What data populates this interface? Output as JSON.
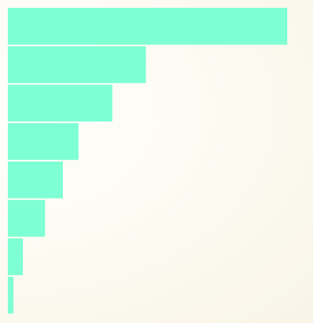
{
  "chart_data": {
    "type": "bar",
    "orientation": "horizontal",
    "title": "",
    "xlabel": "",
    "ylabel": "",
    "grid": false,
    "legend": "none",
    "bar_color": "#7fffd4",
    "xlim": [
      0,
      100
    ],
    "values": [
      100,
      49.4,
      37.4,
      25.3,
      19.7,
      13.3,
      5.4,
      2.0
    ]
  }
}
